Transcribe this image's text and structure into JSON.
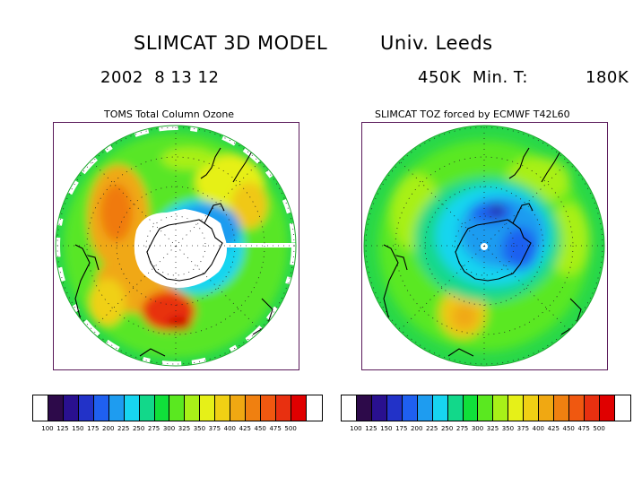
{
  "header": {
    "title_left": "SLIMCAT 3D MODEL",
    "title_right": "Univ. Leeds",
    "date": "2002  8 13 12",
    "level": "450K",
    "min_label": "Min. T:",
    "min_value": "180K"
  },
  "panels": [
    {
      "title": "TOMS Total Column Ozone"
    },
    {
      "title": "SLIMCAT TOZ forced by ECMWF T42L60"
    }
  ],
  "colorbar": {
    "colors": [
      "#ffffff",
      "#2d0a4a",
      "#29108f",
      "#2232c8",
      "#1f60f0",
      "#1e9cf0",
      "#17d5f0",
      "#12d88a",
      "#10e03a",
      "#5ae820",
      "#a8f018",
      "#e6f018",
      "#f0d014",
      "#f0a812",
      "#f08010",
      "#f05810",
      "#e83010",
      "#e00000",
      "#ffffff"
    ],
    "ticks": [
      "100",
      "125",
      "150",
      "175",
      "200",
      "225",
      "250",
      "275",
      "300",
      "325",
      "350",
      "375",
      "400",
      "425",
      "450",
      "475",
      "500"
    ]
  }
}
